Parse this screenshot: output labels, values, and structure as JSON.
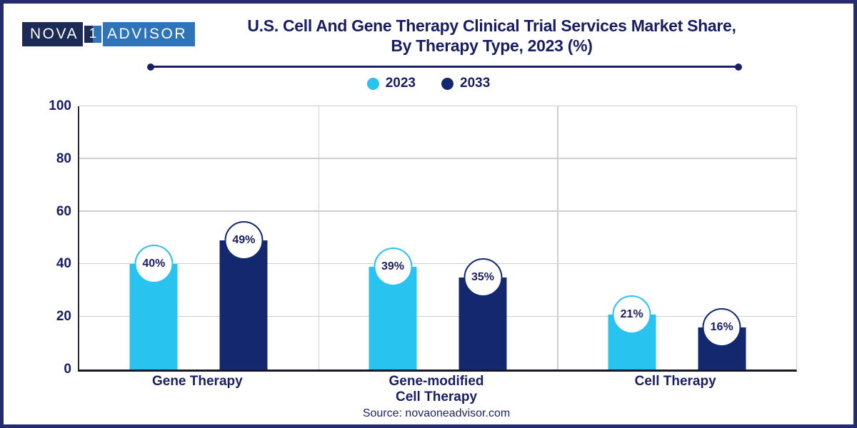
{
  "logo": {
    "word1": "NOVA",
    "word2": "1",
    "word3": "ADVISOR"
  },
  "title": {
    "line1": "U.S. Cell And Gene Therapy Clinical Trial Services Market Share,",
    "line2": "By Therapy Type, 2023 (%)"
  },
  "chart_data": {
    "type": "bar",
    "title": "U.S. Cell And Gene Therapy Clinical Trial Services Market Share, By Therapy Type, 2023 (%)",
    "categories": [
      "Gene Therapy",
      "Gene-modified\nCell Therapy",
      "Cell Therapy"
    ],
    "series": [
      {
        "name": "2023",
        "color": "#29C3F0",
        "values": [
          40,
          39,
          21
        ],
        "labels": [
          "40%",
          "39%",
          "21%"
        ]
      },
      {
        "name": "2033",
        "color": "#13286E",
        "values": [
          49,
          35,
          16
        ],
        "labels": [
          "49%",
          "35%",
          "16%"
        ]
      }
    ],
    "ylim": [
      0,
      100
    ],
    "yticks": [
      0,
      20,
      40,
      60,
      80,
      100
    ],
    "grid": true,
    "legend_position": "top-center"
  },
  "footer": {
    "source": "Source: novaoneadvisor.com"
  },
  "colors": {
    "text_navy": "#191D63",
    "bar_cyan": "#29C3F0",
    "bar_navy": "#13286E",
    "gridline": "#CFCFCF",
    "page_border": "#242B6E",
    "logo_dark": "#1C2B55",
    "logo_light": "#2E74B9"
  }
}
